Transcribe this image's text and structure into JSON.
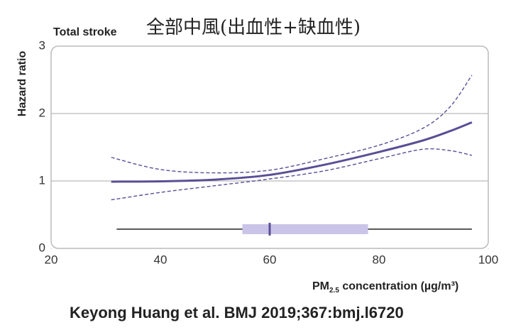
{
  "chart_data": {
    "type": "line",
    "panel_label": "Total stroke",
    "title": "全部中風(出血性+缺血性)",
    "ylabel": "Hazard ratio",
    "xlabel": {
      "main": "PM",
      "sub": "2.5",
      "rest": " concentration (µg/m³)"
    },
    "caption": "Keyong Huang et al. BMJ 2019;367:bmj.l6720",
    "x": [
      31,
      40,
      50,
      60,
      70,
      80,
      88,
      93,
      97
    ],
    "series": [
      {
        "color": "#5b4e96",
        "dashed": false,
        "values": [
          0.99,
          0.995,
          1.02,
          1.09,
          1.24,
          1.43,
          1.6,
          1.74,
          1.87
        ]
      },
      {
        "color": "#5b4e96",
        "dashed": true,
        "values": [
          1.35,
          1.17,
          1.12,
          1.16,
          1.33,
          1.53,
          1.78,
          2.1,
          2.57
        ]
      },
      {
        "color": "#5b4e96",
        "dashed": true,
        "values": [
          0.72,
          0.83,
          0.93,
          1.03,
          1.15,
          1.33,
          1.47,
          1.45,
          1.38
        ]
      }
    ],
    "distribution": {
      "whisker_low": 32,
      "q1": 55,
      "median": 60,
      "q3": 78,
      "whisker_high": 97,
      "box_color": "#c9c4e8",
      "median_color": "#5b4e96"
    },
    "xlim": [
      20,
      100
    ],
    "xticks": [
      20,
      40,
      60,
      80,
      100
    ],
    "ylim": [
      0,
      3
    ],
    "yticks": [
      0,
      1,
      2,
      3
    ],
    "grid": true
  }
}
